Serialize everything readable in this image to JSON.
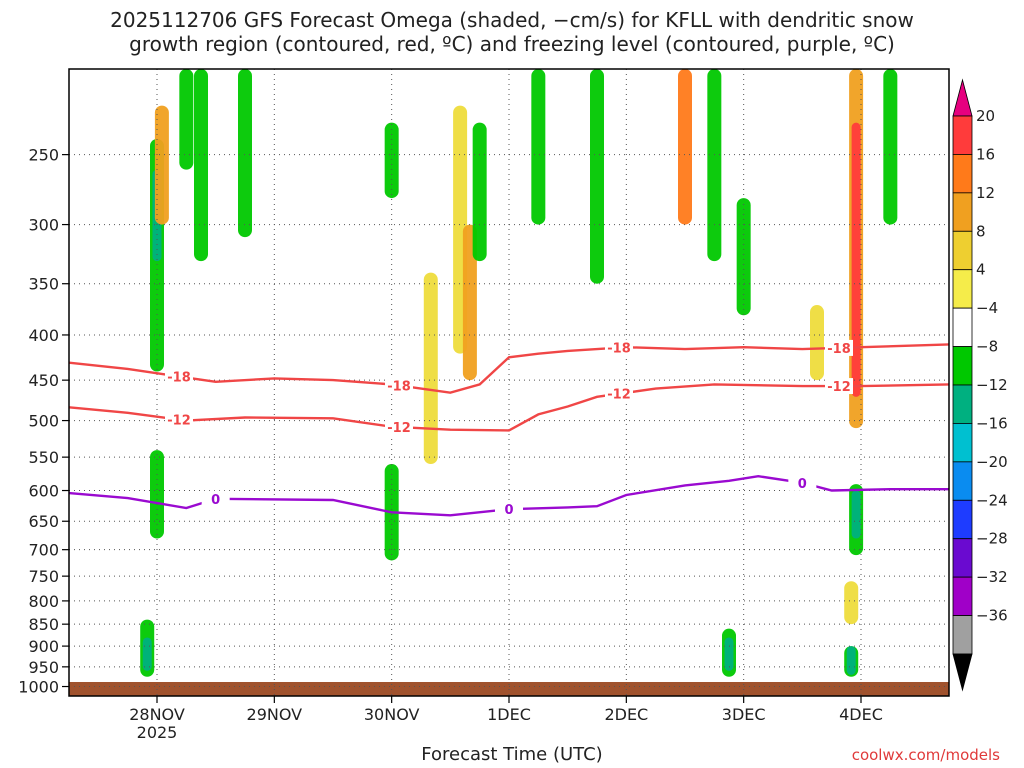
{
  "title_line1": "2025112706 GFS Forecast Omega (shaded, −cm/s) for KFLL with dendritic snow",
  "title_line2": "growth region (contoured, red, ºC) and freezing level (contoured, purple, ºC)",
  "xlabel": "Forecast Time (UTC)",
  "credit": "coolwx.com/models",
  "chart_data": {
    "type": "heatmap",
    "x_start": "2025-11-27T06:00Z",
    "x_end": "2025-12-04T18:00Z",
    "x_ticks": [
      {
        "date": "2025-11-28T00:00Z",
        "label": "28NOV",
        "sub": "2025"
      },
      {
        "date": "2025-11-29T00:00Z",
        "label": "29NOV",
        "sub": ""
      },
      {
        "date": "2025-11-30T00:00Z",
        "label": "30NOV",
        "sub": ""
      },
      {
        "date": "2025-12-01T00:00Z",
        "label": "1DEC",
        "sub": ""
      },
      {
        "date": "2025-12-02T00:00Z",
        "label": "2DEC",
        "sub": ""
      },
      {
        "date": "2025-12-03T00:00Z",
        "label": "3DEC",
        "sub": ""
      },
      {
        "date": "2025-12-04T00:00Z",
        "label": "4DEC",
        "sub": ""
      }
    ],
    "y_axis": "pressure (hPa), reversed",
    "y_range": [
      200,
      1025
    ],
    "y_ticks": [
      250,
      300,
      350,
      400,
      450,
      500,
      550,
      600,
      650,
      700,
      750,
      800,
      850,
      900,
      950,
      1000
    ],
    "grid": true,
    "colorbar": {
      "labels": [
        "20",
        "16",
        "12",
        "8",
        "4",
        "−4",
        "−8",
        "−12",
        "−16",
        "−20",
        "−24",
        "−28",
        "−32",
        "−36"
      ],
      "colors": [
        "#e6007f",
        "#ff3b3b",
        "#ff7a1a",
        "#f0a020",
        "#eecf30",
        "#f5ec4a",
        "#ffffff",
        "#00c800",
        "#00b080",
        "#00c0d0",
        "#0a8cf0",
        "#1e3cff",
        "#6a0ad0",
        "#a000c8",
        "#a0a0a0",
        "#000000"
      ]
    },
    "contours": [
      {
        "name": "-18",
        "color": "#f04646",
        "labels": [
          "-18",
          "-18",
          "-18",
          "-18"
        ],
        "points": [
          [
            "2025-11-27T06:00Z",
            430
          ],
          [
            "2025-11-27T18:00Z",
            437
          ],
          [
            "2025-11-28T06:00Z",
            447
          ],
          [
            "2025-11-28T12:00Z",
            452
          ],
          [
            "2025-11-29T00:00Z",
            448
          ],
          [
            "2025-11-29T12:00Z",
            450
          ],
          [
            "2025-11-30T00:00Z",
            455
          ],
          [
            "2025-11-30T12:00Z",
            465
          ],
          [
            "2025-11-30T18:00Z",
            455
          ],
          [
            "2025-12-01T00:00Z",
            424
          ],
          [
            "2025-12-01T06:00Z",
            420
          ],
          [
            "2025-12-01T12:00Z",
            417
          ],
          [
            "2025-12-02T00:00Z",
            413
          ],
          [
            "2025-12-02T12:00Z",
            415
          ],
          [
            "2025-12-03T00:00Z",
            413
          ],
          [
            "2025-12-03T12:00Z",
            415
          ],
          [
            "2025-12-04T00:00Z",
            413
          ],
          [
            "2025-12-04T18:00Z",
            410
          ]
        ]
      },
      {
        "name": "-12",
        "color": "#f04646",
        "labels": [
          "-12",
          "-12",
          "-12",
          "-12"
        ],
        "points": [
          [
            "2025-11-27T06:00Z",
            483
          ],
          [
            "2025-11-27T18:00Z",
            490
          ],
          [
            "2025-11-28T06:00Z",
            500
          ],
          [
            "2025-11-28T18:00Z",
            496
          ],
          [
            "2025-11-29T12:00Z",
            497
          ],
          [
            "2025-11-30T00:00Z",
            508
          ],
          [
            "2025-11-30T12:00Z",
            512
          ],
          [
            "2025-12-01T00:00Z",
            513
          ],
          [
            "2025-12-01T06:00Z",
            492
          ],
          [
            "2025-12-01T12:00Z",
            482
          ],
          [
            "2025-12-01T18:00Z",
            470
          ],
          [
            "2025-12-02T06:00Z",
            460
          ],
          [
            "2025-12-02T18:00Z",
            455
          ],
          [
            "2025-12-03T12:00Z",
            457
          ],
          [
            "2025-12-04T00:00Z",
            457
          ],
          [
            "2025-12-04T18:00Z",
            455
          ]
        ]
      },
      {
        "name": "0",
        "color": "#9a0ad0",
        "labels": [
          "0",
          "0",
          "0"
        ],
        "points": [
          [
            "2025-11-27T06:00Z",
            604
          ],
          [
            "2025-11-27T18:00Z",
            612
          ],
          [
            "2025-11-28T06:00Z",
            628
          ],
          [
            "2025-11-28T12:00Z",
            613
          ],
          [
            "2025-11-29T12:00Z",
            615
          ],
          [
            "2025-11-30T00:00Z",
            635
          ],
          [
            "2025-11-30T12:00Z",
            640
          ],
          [
            "2025-12-01T00:00Z",
            630
          ],
          [
            "2025-12-01T12:00Z",
            627
          ],
          [
            "2025-12-01T18:00Z",
            625
          ],
          [
            "2025-12-02T00:00Z",
            607
          ],
          [
            "2025-12-02T12:00Z",
            592
          ],
          [
            "2025-12-02T21:00Z",
            585
          ],
          [
            "2025-12-03T03:00Z",
            578
          ],
          [
            "2025-12-03T12:00Z",
            588
          ],
          [
            "2025-12-03T18:00Z",
            600
          ],
          [
            "2025-12-04T06:00Z",
            598
          ],
          [
            "2025-12-04T18:00Z",
            598
          ]
        ]
      }
    ],
    "shaded": [
      {
        "t": "2025-11-28T00:00Z",
        "p_top": 240,
        "p_bot": 440,
        "cat": "-8"
      },
      {
        "t": "2025-11-28T00:00Z",
        "p_top": 260,
        "p_bot": 330,
        "cat": "-12"
      },
      {
        "t": "2025-11-28T00:00Z",
        "p_top": 540,
        "p_bot": 680,
        "cat": "-8"
      },
      {
        "t": "2025-11-27T22:00Z",
        "p_top": 840,
        "p_bot": 975,
        "cat": "-8"
      },
      {
        "t": "2025-11-27T22:00Z",
        "p_top": 880,
        "p_bot": 960,
        "cat": "-12"
      },
      {
        "t": "2025-11-28T01:00Z",
        "p_top": 220,
        "p_bot": 300,
        "cat": "8"
      },
      {
        "t": "2025-11-28T06:00Z",
        "p_top": 200,
        "p_bot": 260,
        "cat": "-4"
      },
      {
        "t": "2025-11-28T09:00Z",
        "p_top": 200,
        "p_bot": 330,
        "cat": "-8"
      },
      {
        "t": "2025-11-28T18:00Z",
        "p_top": 200,
        "p_bot": 310,
        "cat": "-8"
      },
      {
        "t": "2025-11-30T00:00Z",
        "p_top": 230,
        "p_bot": 280,
        "cat": "-4"
      },
      {
        "t": "2025-11-30T00:00Z",
        "p_top": 560,
        "p_bot": 720,
        "cat": "-8"
      },
      {
        "t": "2025-11-30T08:00Z",
        "p_top": 340,
        "p_bot": 560,
        "cat": "4"
      },
      {
        "t": "2025-11-30T14:00Z",
        "p_top": 220,
        "p_bot": 420,
        "cat": "4"
      },
      {
        "t": "2025-11-30T16:00Z",
        "p_top": 300,
        "p_bot": 450,
        "cat": "8"
      },
      {
        "t": "2025-11-30T18:00Z",
        "p_top": 230,
        "p_bot": 330,
        "cat": "-4"
      },
      {
        "t": "2025-12-01T06:00Z",
        "p_top": 200,
        "p_bot": 300,
        "cat": "-8"
      },
      {
        "t": "2025-12-01T18:00Z",
        "p_top": 200,
        "p_bot": 350,
        "cat": "-8"
      },
      {
        "t": "2025-12-02T12:00Z",
        "p_top": 200,
        "p_bot": 300,
        "cat": "12"
      },
      {
        "t": "2025-12-02T18:00Z",
        "p_top": 200,
        "p_bot": 330,
        "cat": "-8"
      },
      {
        "t": "2025-12-02T21:00Z",
        "p_top": 860,
        "p_bot": 975,
        "cat": "-8"
      },
      {
        "t": "2025-12-02T21:00Z",
        "p_top": 880,
        "p_bot": 960,
        "cat": "-12"
      },
      {
        "t": "2025-12-03T00:00Z",
        "p_top": 280,
        "p_bot": 380,
        "cat": "-8"
      },
      {
        "t": "2025-12-03T15:00Z",
        "p_top": 370,
        "p_bot": 450,
        "cat": "4"
      },
      {
        "t": "2025-12-03T22:00Z",
        "p_top": 900,
        "p_bot": 975,
        "cat": "-8"
      },
      {
        "t": "2025-12-03T22:00Z",
        "p_top": 900,
        "p_bot": 970,
        "cat": "-12"
      },
      {
        "t": "2025-12-03T23:00Z",
        "p_top": 200,
        "p_bot": 510,
        "cat": "8"
      },
      {
        "t": "2025-12-03T23:00Z",
        "p_top": 230,
        "p_bot": 470,
        "cat": "16"
      },
      {
        "t": "2025-12-03T23:00Z",
        "p_top": 590,
        "p_bot": 710,
        "cat": "-8"
      },
      {
        "t": "2025-12-03T23:00Z",
        "p_top": 600,
        "p_bot": 680,
        "cat": "-12"
      },
      {
        "t": "2025-12-03T22:00Z",
        "p_top": 760,
        "p_bot": 850,
        "cat": "4"
      },
      {
        "t": "2025-12-04T06:00Z",
        "p_top": 200,
        "p_bot": 300,
        "cat": "-8"
      }
    ]
  }
}
